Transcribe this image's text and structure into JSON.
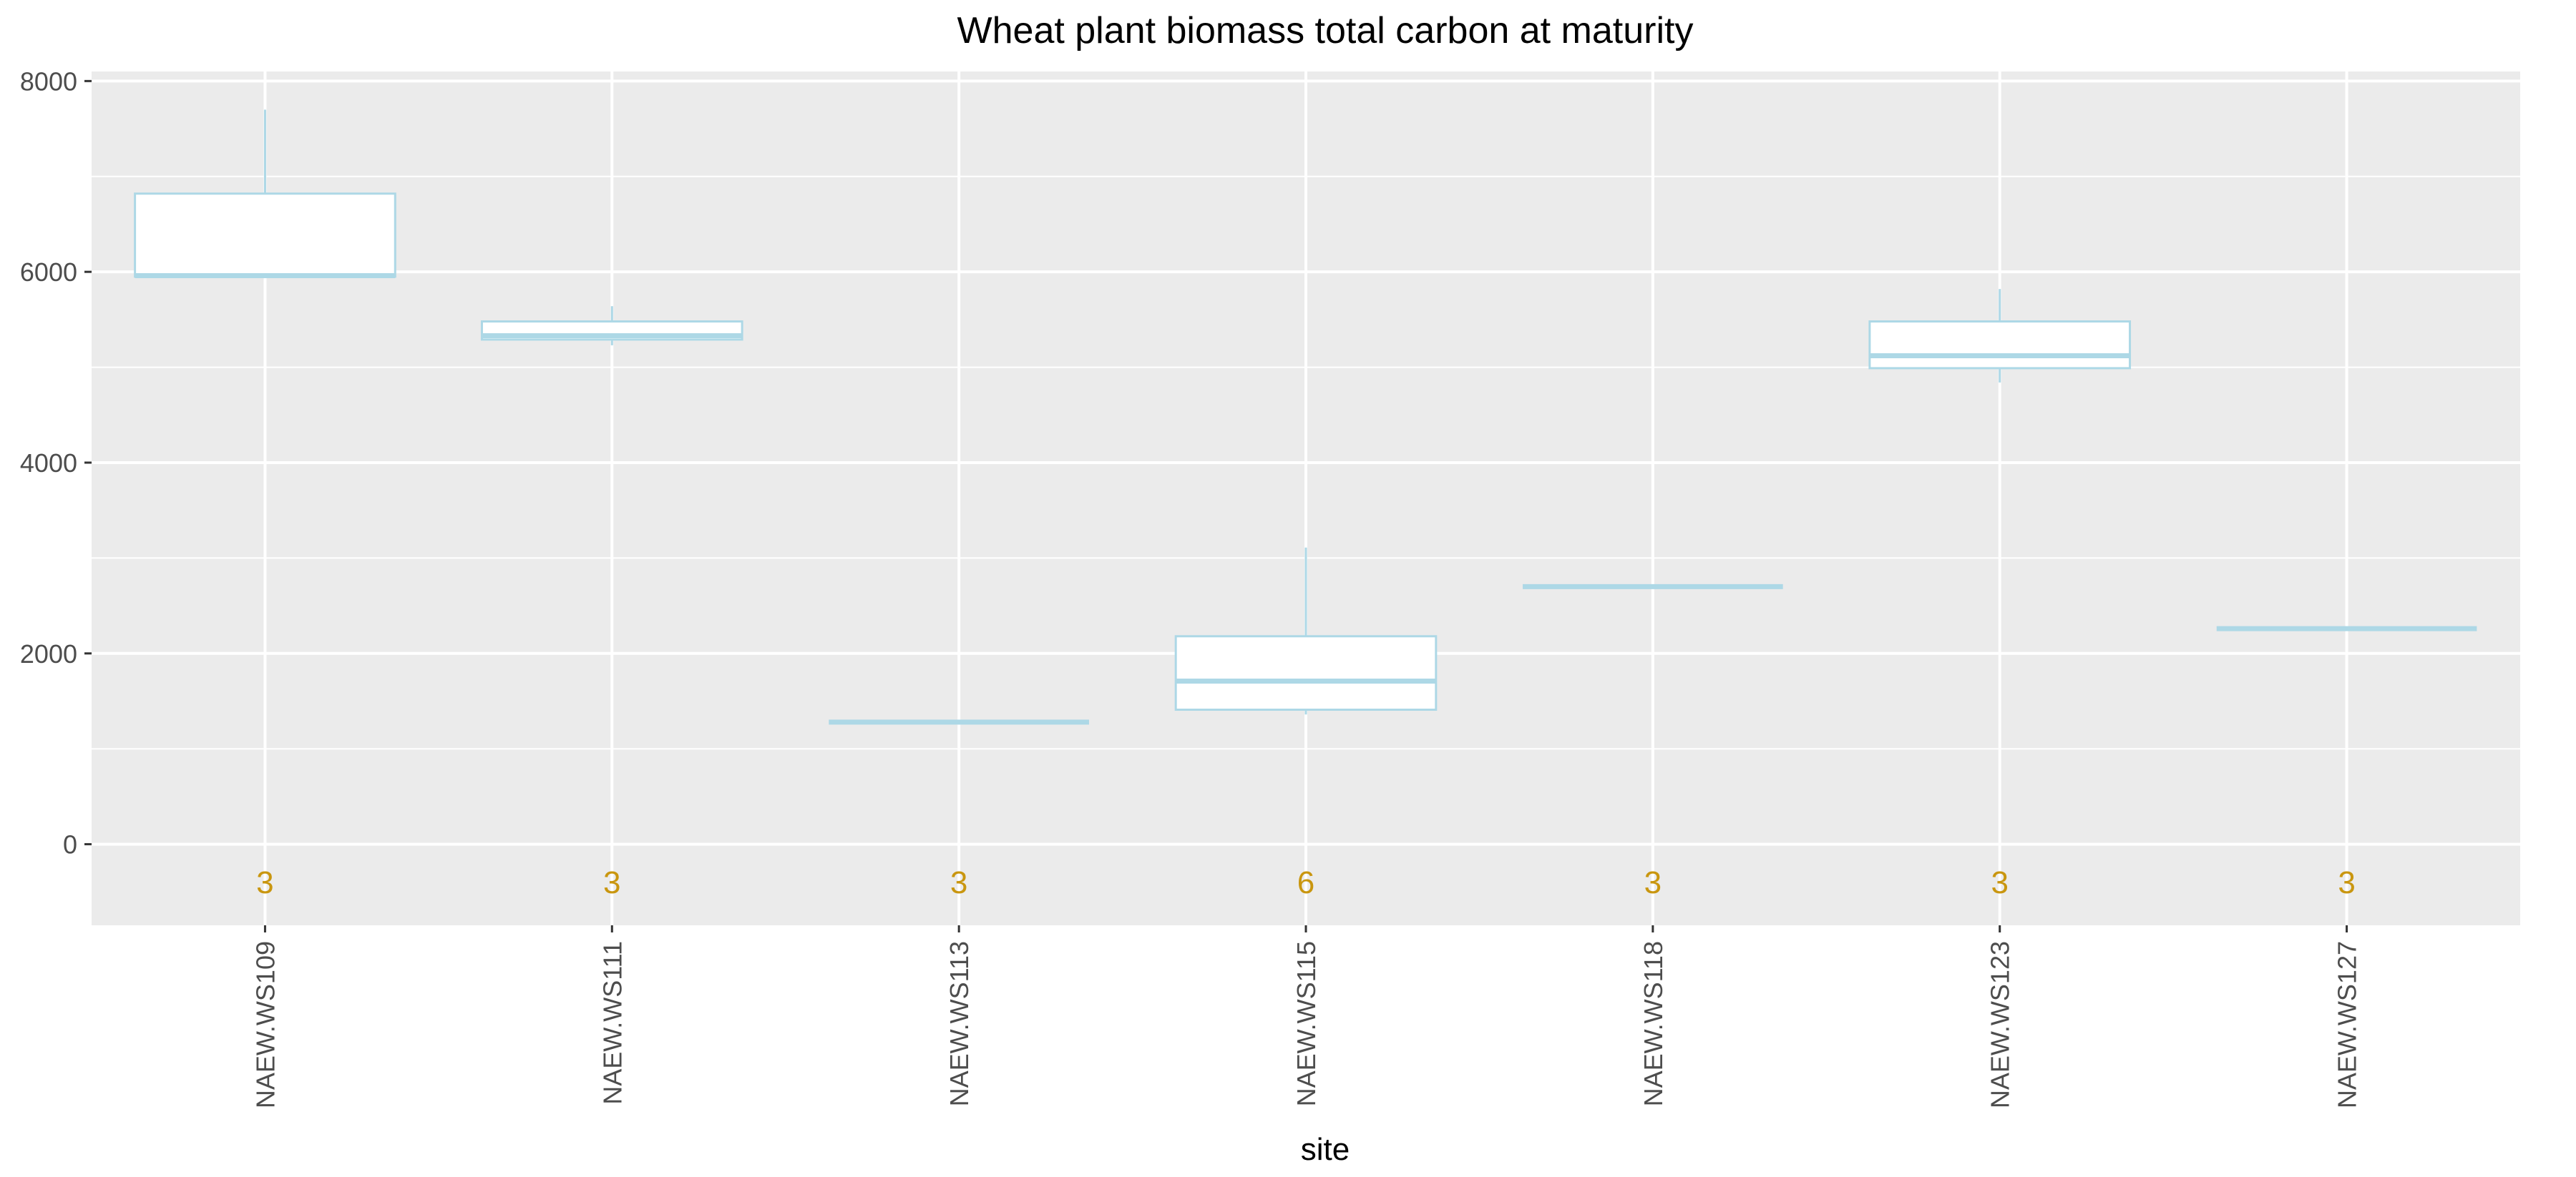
{
  "chart_data": {
    "type": "box",
    "title": "Wheat plant biomass total carbon at maturity",
    "xlabel": "site",
    "ylabel": "",
    "ylim": [
      -850,
      8100
    ],
    "yticks": [
      0,
      2000,
      4000,
      6000,
      8000
    ],
    "grid": true,
    "legend": "none",
    "categories": [
      "NAEW.WS109",
      "NAEW.WS111",
      "NAEW.WS113",
      "NAEW.WS115",
      "NAEW.WS118",
      "NAEW.WS123",
      "NAEW.WS127"
    ],
    "boxes": [
      {
        "site": "NAEW.WS109",
        "min": 5950,
        "q1": 5950,
        "median": 5960,
        "q3": 6820,
        "max": 7700,
        "n": "3"
      },
      {
        "site": "NAEW.WS111",
        "min": 5230,
        "q1": 5290,
        "median": 5330,
        "q3": 5480,
        "max": 5640,
        "n": "3"
      },
      {
        "site": "NAEW.WS113",
        "min": 1280,
        "q1": 1280,
        "median": 1280,
        "q3": 1280,
        "max": 1280,
        "n": "3"
      },
      {
        "site": "NAEW.WS115",
        "min": 1360,
        "q1": 1410,
        "median": 1710,
        "q3": 2180,
        "max": 3110,
        "n": "6"
      },
      {
        "site": "NAEW.WS118",
        "min": 2700,
        "q1": 2700,
        "median": 2700,
        "q3": 2700,
        "max": 2700,
        "n": "3"
      },
      {
        "site": "NAEW.WS123",
        "min": 4840,
        "q1": 4990,
        "median": 5120,
        "q3": 5480,
        "max": 5820,
        "n": "3"
      },
      {
        "site": "NAEW.WS127",
        "min": 2260,
        "q1": 2260,
        "median": 2260,
        "q3": 2260,
        "max": 2260,
        "n": "3"
      }
    ],
    "count_label_y": -400,
    "colors": {
      "panel": "#ebebeb",
      "grid": "#ffffff",
      "box_stroke": "#add8e6",
      "box_fill": "#ffffff",
      "count_text": "#c9960f"
    }
  }
}
